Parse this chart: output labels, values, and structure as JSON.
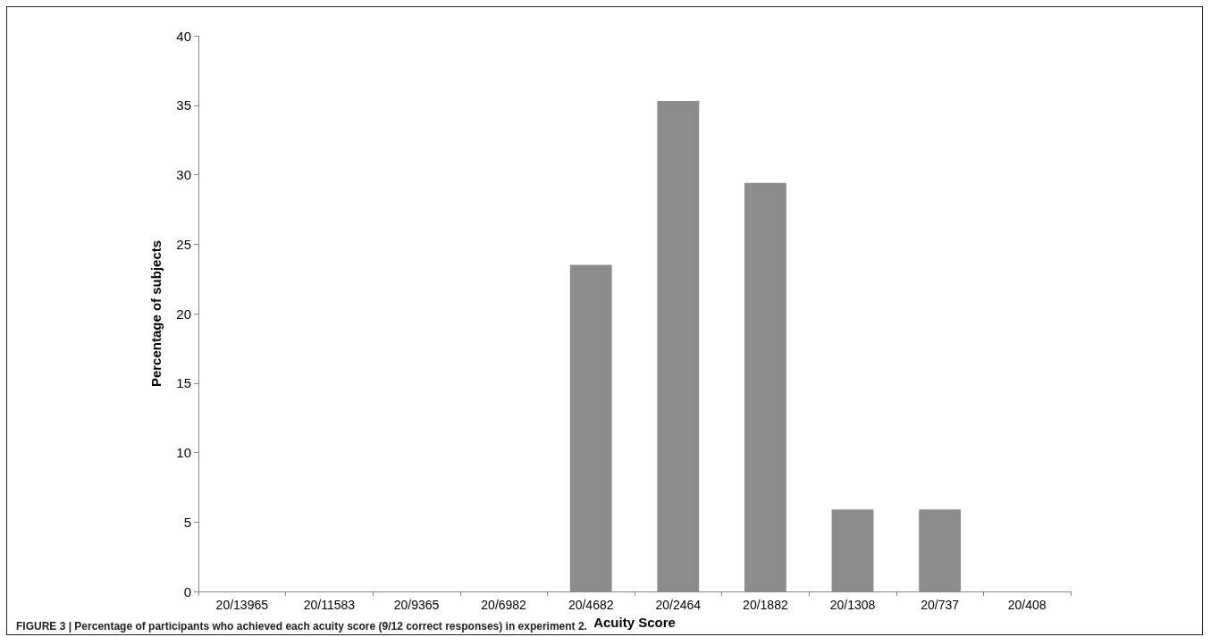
{
  "chart_data": {
    "type": "bar",
    "xlabel": "Acuity Score",
    "ylabel": "Percentage of subjects",
    "categories": [
      "20/13965",
      "20/11583",
      "20/9365",
      "20/6982",
      "20/4682",
      "20/2464",
      "20/1882",
      "20/1308",
      "20/737",
      "20/408"
    ],
    "values": [
      0,
      0,
      0,
      0,
      23.5,
      35.3,
      29.4,
      5.9,
      5.9,
      0
    ],
    "color": "#8c8c8c",
    "ylim": [
      0,
      40
    ],
    "yticks": [
      0,
      5,
      10,
      15,
      20,
      25,
      30,
      35,
      40
    ],
    "grid": false,
    "annotations": [
      "FIGURE 3 | Percentage of participants who achieved each acuity score (9/12 correct responses) in experiment 2."
    ]
  }
}
